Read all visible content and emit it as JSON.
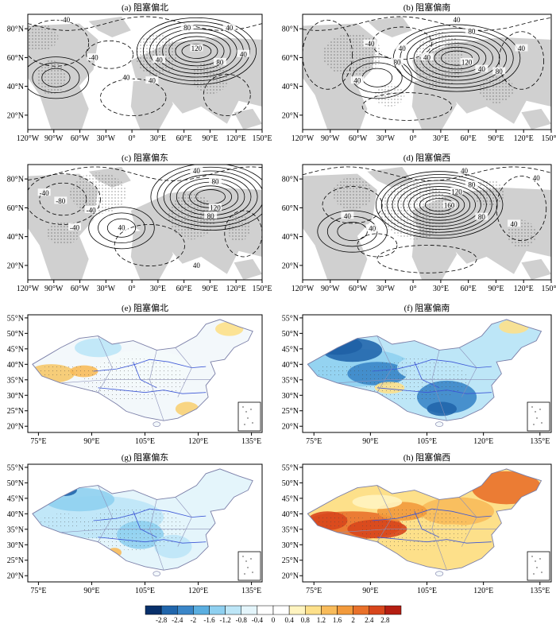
{
  "top_panels": [
    {
      "title": "(a) 阻塞偏北",
      "labels": [
        "-40",
        "-40",
        "40",
        "120",
        "80",
        "40",
        "40",
        "80",
        "40",
        "40"
      ]
    },
    {
      "title": "(b) 阻塞偏南",
      "labels": [
        "-40",
        "40",
        "80",
        "40",
        "80",
        "120",
        "40",
        "40",
        "80",
        "40",
        "40"
      ]
    },
    {
      "title": "(c) 阻塞偏东",
      "labels": [
        "-40",
        "-80",
        "-40",
        "40",
        "80",
        "120",
        "80",
        "40",
        "40",
        "-40"
      ]
    },
    {
      "title": "(d) 阻塞偏西",
      "labels": [
        "40",
        "40",
        "80",
        "120",
        "160",
        "80",
        "40",
        "40",
        "40"
      ]
    }
  ],
  "bottom_panels": [
    {
      "title": "(e) 阻塞偏北"
    },
    {
      "title": "(f) 阻塞偏南"
    },
    {
      "title": "(g) 阻塞偏东"
    },
    {
      "title": "(h) 阻塞偏西"
    }
  ],
  "top_axes": {
    "x_ticks": [
      "120°W",
      "90°W",
      "60°W",
      "30°W",
      "0°",
      "30°E",
      "60°E",
      "90°E",
      "120°E",
      "150°E"
    ],
    "y_ticks": [
      "80°N",
      "60°N",
      "40°N",
      "20°N"
    ]
  },
  "bottom_axes": {
    "x_ticks": [
      "75°E",
      "90°E",
      "105°E",
      "120°E",
      "135°E"
    ],
    "y_ticks": [
      "55°N",
      "50°N",
      "45°N",
      "40°N",
      "35°N",
      "30°N",
      "25°N",
      "20°N"
    ]
  },
  "colorbar": {
    "labels": [
      "-2.8",
      "-2.4",
      "-2",
      "-1.6",
      "-1.2",
      "-0.8",
      "-0.4",
      "0",
      "0.4",
      "0.8",
      "1.2",
      "1.6",
      "2",
      "2.4",
      "2.8"
    ],
    "colors": [
      "#08306b",
      "#2166ac",
      "#3a86c8",
      "#5aaee0",
      "#8fd0f0",
      "#bde6f7",
      "#e4f5fb",
      "#ffffff",
      "#ffffff",
      "#fff4c0",
      "#fde08a",
      "#f8bb5a",
      "#f29a3c",
      "#e9712a",
      "#d8461c",
      "#b51e12"
    ]
  }
}
